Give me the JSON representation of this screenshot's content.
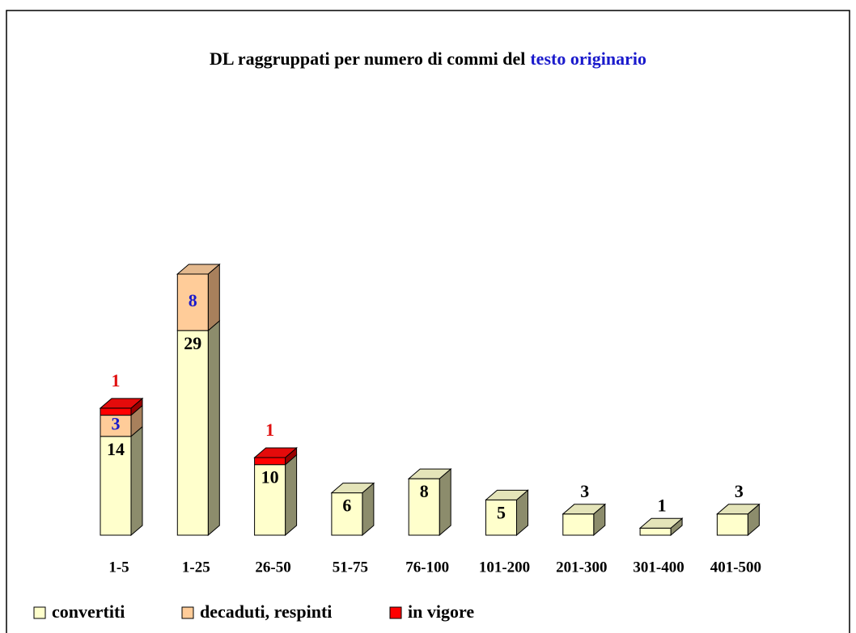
{
  "chart_data": {
    "type": "bar3d_stacked",
    "title": [
      "DL raggruppati per numero di commi del",
      "testo originario"
    ],
    "title_colors": [
      "#000000",
      "#1a1acc"
    ],
    "categories": [
      "1-5",
      "1-25",
      "26-50",
      "51-75",
      "76-100",
      "101-200",
      "201-300",
      "301-400",
      "401-500"
    ],
    "series": [
      {
        "name": "convertiti",
        "color": "#ffffcc",
        "side_color": "#8c8c6c",
        "label_color": "#000000",
        "values": [
          14,
          29,
          10,
          6,
          8,
          5,
          3,
          1,
          3
        ]
      },
      {
        "name": "decaduti, respinti",
        "color": "#ffcc99",
        "side_color": "#a8805c",
        "label_color": "#1a1acc",
        "values": [
          3,
          8,
          null,
          null,
          null,
          null,
          null,
          null,
          null
        ]
      },
      {
        "name": "in vigore",
        "color": "#ff0000",
        "side_color": "#990000",
        "label_color": "#e01010",
        "values": [
          1,
          null,
          1,
          null,
          null,
          null,
          null,
          null,
          null
        ]
      }
    ],
    "legend": "bottom"
  }
}
